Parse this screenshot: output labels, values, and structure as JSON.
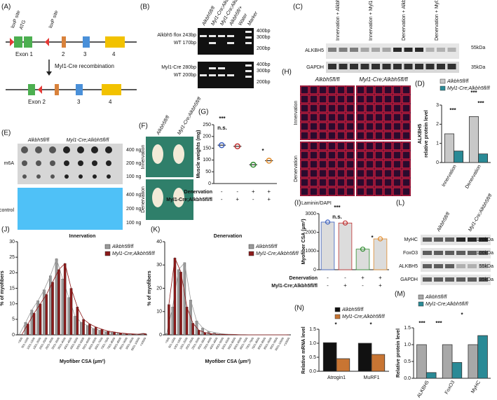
{
  "letters": [
    "(A)",
    "(B)",
    "(C)",
    "(D)",
    "(E)",
    "(F)",
    "(G)",
    "(H)",
    "(I)",
    "(J)",
    "(K)",
    "(L)",
    "(M)",
    "(N)"
  ],
  "a": {
    "loxp1": "loxP site",
    "atg": "ATG",
    "loxp2": "loxP site",
    "exon1": "Exon 1",
    "e2": "2",
    "e3": "3",
    "e4": "4",
    "recomb": "Myl1-Cre recombination",
    "exon2": "Exon 2",
    "b3": "3",
    "b4": "4"
  },
  "b": {
    "lanes": [
      "Alkbh5fl/fl",
      "Myl1-Cre;Alkbh5fl/+",
      "Myl1-Cre;Alkbh5fl/fl",
      "Alkbh5fl/+",
      "Water",
      "Marker"
    ],
    "rows": [
      "Alkbh5 flox 243bp",
      "WT 170bp",
      "Myl1-Cre 280bp",
      "WT 200bp"
    ],
    "sizes": [
      "400bp",
      "300bp",
      "200bp",
      "400bp",
      "300bp",
      "200bp"
    ]
  },
  "c": {
    "groups": [
      "Innervation + Alkbh5fl/fl",
      "Innervation + Myl1-Cre;Alkbh5fl/fl",
      "Denervation + Alkbh5fl/fl",
      "Denervation + Myl1-Cre;Alkbh5fl/fl"
    ],
    "proteins": [
      "ALKBH5",
      "GAPDH"
    ],
    "sizes": [
      "55kDa",
      "35kDa"
    ]
  },
  "e": {
    "groups": [
      "Alkbh5fl/fl",
      "Myl1-Cre;Alkbh5fl/fl"
    ],
    "rows": [
      "m6A",
      "Loading control"
    ],
    "amounts": [
      "400 ng",
      "200 ng",
      "100 ng",
      "400 ng",
      "200 ng",
      "100 ng"
    ]
  },
  "f": {
    "groups": [
      "Alkbh5fl/fl",
      "Myl1-Cre;Alkbh5fl/fl"
    ],
    "rows": [
      "Innervation",
      "Denervation"
    ]
  },
  "h": {
    "groups": [
      "Alkbh5fl/fl",
      "Myl1-Cre;Alkbh5fl/fl"
    ],
    "rows": [
      "Innervation",
      "Denervation"
    ],
    "stain": "Laminin/DAPI"
  },
  "l": {
    "groups": [
      "Alkbh5fl/fl",
      "Myl1-Cre;Alkbh5fl/fl"
    ],
    "proteins": [
      "MyHC",
      "FoxO3",
      "ALKBH5",
      "GAPDH"
    ],
    "sizes": [
      "170kDa",
      "100kDa",
      "55kDa",
      "35kDa"
    ]
  },
  "chart_data": [
    {
      "type": "bar",
      "ylabel": [
        "ALKBH5",
        "relative protein level"
      ],
      "categories": [
        "Innervation",
        "Denervation"
      ],
      "series": [
        {
          "name": "Alkbh5fl/fl",
          "color": "#c8c8c8",
          "values": [
            1.5,
            2.4
          ]
        },
        {
          "name": "Myl1-Cre;Alkbh5fl/fl",
          "color": "#2a8a96",
          "values": [
            0.6,
            0.45
          ]
        }
      ],
      "ylim": [
        0,
        3
      ],
      "yticks": [
        0,
        1,
        2,
        3
      ],
      "annotations": [
        "***",
        "***",
        "***"
      ]
    },
    {
      "type": "dot",
      "ylabel": [
        "Muscle weights (mg)"
      ],
      "series": [
        {
          "colors": [
            "#3b5fc0",
            "#c03030",
            "#2e8b2e",
            "#e08a2a"
          ],
          "values": [
            163,
            158,
            80,
            97
          ]
        }
      ],
      "ylim": [
        0,
        250
      ],
      "yticks": [
        0,
        50,
        100,
        150,
        200,
        250
      ],
      "conditions": [
        {
          "name": "Denervation",
          "signs": [
            "-",
            "-",
            "+",
            "+"
          ]
        },
        {
          "name": "Myl1-Cre;Alkbh5fl/fl",
          "signs": [
            "-",
            "+",
            "-",
            "+"
          ]
        }
      ],
      "annotations": [
        "***",
        "n.s.",
        "*"
      ]
    },
    {
      "type": "bar",
      "ylabel": [
        "Myofiber CSA (μm²)"
      ],
      "series": [
        {
          "color": "#dcdcdc",
          "colors": [
            "#3b5fc0",
            "#c03030",
            "#2e8b2e",
            "#e08a2a"
          ],
          "values": [
            2550,
            2500,
            1100,
            1650
          ]
        }
      ],
      "ylim": [
        0,
        3000
      ],
      "yticks": [
        0,
        1000,
        2000,
        3000
      ],
      "conditions": [
        {
          "name": "Denervation",
          "signs": [
            "-",
            "-",
            "+",
            "+"
          ]
        },
        {
          "name": "Myl1-Cre;Alkbh5fl/fl",
          "signs": [
            "-",
            "+",
            "-",
            "+"
          ]
        }
      ],
      "annotations": [
        "***",
        "n.s.",
        "*"
      ]
    },
    {
      "type": "bar",
      "title": "Innervation",
      "xlabel": "Myofiber CSA (μm²)",
      "ylabel": [
        "% of myofibers"
      ],
      "trend_lines": true,
      "categories": [
        "<500",
        "501-1000",
        "1001-1500",
        "1501-2000",
        "2001-2500",
        "2501-3000",
        "3001-3500",
        "3501-4000",
        "4001-4500",
        "4501-5000",
        "5001-5500",
        "5501-6000",
        "6001-6500",
        "6501-7000",
        "7001-7500",
        "7501-8000",
        "8001-8500",
        "8501-9000",
        "9001-9500",
        "9501-10000",
        ">10000"
      ],
      "series": [
        {
          "name": "Alkbh5fl/fl",
          "color": "#9a9a9a",
          "values": [
            0.2,
            4,
            8,
            11,
            14.5,
            19,
            24.5,
            18,
            12,
            6,
            4,
            3,
            2,
            1.5,
            1,
            0.8,
            0.6,
            0.4,
            0.3,
            0.2,
            0.5
          ]
        },
        {
          "name": "Myl1-Cre;Alkbh5fl/fl",
          "color": "#8b1a1a",
          "values": [
            0.1,
            3.5,
            7,
            10,
            13,
            17,
            21,
            23,
            15,
            9,
            5,
            3.5,
            2.5,
            1.8,
            1.2,
            0.9,
            0.6,
            0.4,
            0.3,
            0.2,
            0.4
          ]
        }
      ],
      "ylim": [
        0,
        30
      ],
      "yticks": [
        0,
        5,
        10,
        15,
        20,
        25,
        30
      ]
    },
    {
      "type": "bar",
      "title": "Denervation",
      "xlabel": "Myofiber CSA (μm²)",
      "ylabel": [
        "% of myofibers"
      ],
      "trend_lines": true,
      "categories": [
        "<500",
        "501-1000",
        "1001-1500",
        "1501-2000",
        "2001-2500",
        "2501-3000",
        "3001-3500",
        "3501-4000",
        "4001-4500",
        "4501-5000",
        "5001-5500",
        "5501-6000",
        "6001-6500",
        "6501-7000",
        "7001-7500",
        "7501-8000",
        "8001-8500",
        "8501-9000",
        "9001-9500",
        "9501-10000",
        ">10000"
      ],
      "series": [
        {
          "name": "Alkbh5fl/fl",
          "color": "#9a9a9a",
          "values": [
            0.5,
            12,
            28,
            31,
            15,
            6,
            3,
            1.5,
            1,
            0.5,
            0.3,
            0.2,
            0.1,
            0.1,
            0,
            0,
            0,
            0,
            0,
            0,
            0
          ]
        },
        {
          "name": "Myl1-Cre;Alkbh5fl/fl",
          "color": "#8b1a1a",
          "values": [
            13,
            33,
            27,
            12,
            5,
            2,
            1,
            0.5,
            0.3,
            0.2,
            0.1,
            0.1,
            0,
            0,
            0,
            0,
            0,
            0,
            0,
            0,
            0
          ]
        }
      ],
      "ylim": [
        0,
        40
      ],
      "yticks": [
        0,
        10,
        20,
        30,
        40
      ]
    },
    {
      "type": "bar",
      "ylabel": [
        "Relative protein level"
      ],
      "categories": [
        "ALKBH5",
        "FoxO3",
        "MyHC"
      ],
      "series": [
        {
          "name": "Alkbh5fl/fl",
          "color": "#a8a8a8",
          "values": [
            1.0,
            1.0,
            1.0
          ]
        },
        {
          "name": "Myl1-Cre;Alkbh5fl/fl",
          "color": "#2a8a96",
          "values": [
            0.17,
            0.47,
            1.27
          ]
        }
      ],
      "ylim": [
        0,
        1.5
      ],
      "yticks": [
        {
          "value": 0,
          "label": "0.0"
        },
        {
          "value": 0.5,
          "label": "0.5"
        },
        {
          "value": 1,
          "label": "1.0"
        },
        {
          "value": 1.5,
          "label": "1.5"
        }
      ],
      "annotations": [
        "***",
        "***",
        "*"
      ]
    },
    {
      "type": "bar",
      "ylabel": [
        "Relative mRNA level"
      ],
      "categories": [
        "Atrogin1",
        "MuRF1"
      ],
      "series": [
        {
          "name": "Alkbh5fl/fl",
          "color": "#111111",
          "values": [
            1.02,
            1.0
          ]
        },
        {
          "name": "Myl1-Cre;Alkbh5fl/fl",
          "color": "#c87533",
          "values": [
            0.45,
            0.6
          ]
        }
      ],
      "ylim": [
        0,
        1.5
      ],
      "yticks": [
        {
          "value": 0,
          "label": "0.0"
        },
        {
          "value": 0.5,
          "label": "0.5"
        },
        {
          "value": 1,
          "label": "1.0"
        },
        {
          "value": 1.5,
          "label": "1.5"
        }
      ],
      "annotations": [
        "*",
        "*"
      ]
    }
  ]
}
